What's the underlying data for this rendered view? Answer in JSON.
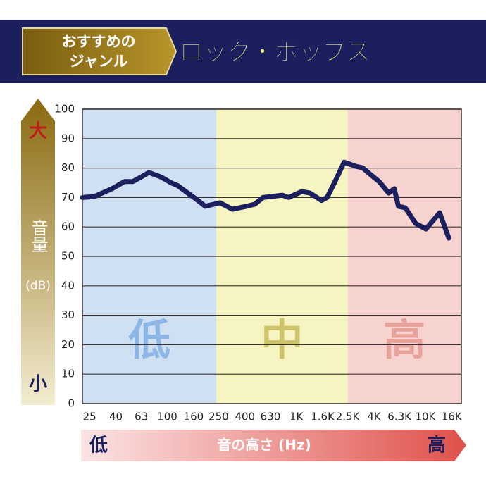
{
  "header": {
    "tag": [
      "おすすめの",
      "ジャンル"
    ],
    "genre": "ロック・ポップス"
  },
  "chart_data": {
    "type": "line",
    "y_label": "音量",
    "y_unit": "(dB)",
    "y_high": "大",
    "y_low": "小",
    "x_label": "音の高さ (Hz)",
    "x_low": "低",
    "x_high": "高",
    "x": [
      22,
      27.2,
      37.3,
      46.6,
      54,
      63,
      72,
      89,
      107,
      121,
      134,
      166,
      197,
      256,
      320,
      410,
      476,
      552,
      780,
      871,
      1100,
      1274,
      1567,
      1730,
      2052,
      2348,
      2887,
      3267,
      3830,
      4385,
      5200,
      5740,
      6180,
      6990,
      8400,
      10100,
      12900,
      15200
    ],
    "values": [
      70,
      70.3,
      73,
      75.4,
      75.4,
      77,
      78.5,
      77,
      75,
      74,
      72.5,
      69.6,
      67,
      68.2,
      66,
      67,
      67.7,
      70,
      70.8,
      70,
      72,
      71.5,
      69,
      70,
      76.5,
      82,
      80.6,
      80.1,
      77.5,
      75.4,
      71.5,
      73,
      67,
      66.5,
      61.2,
      59.3,
      64.8,
      56.2
    ],
    "color": "#1c1f5e",
    "log_x": true,
    "xlim": [
      22,
      19000
    ],
    "ylim": [
      0,
      100
    ],
    "xticks": [
      25,
      40,
      63,
      100,
      160,
      250,
      400,
      630,
      {
        "value": 1000,
        "label": "1K"
      },
      {
        "value": 1600,
        "label": "1.6K"
      },
      {
        "value": 2500,
        "label": "2.5K"
      },
      {
        "value": 4000,
        "label": "4K"
      },
      {
        "value": 6300,
        "label": "6.3K"
      },
      {
        "value": 10000,
        "label": "10K"
      },
      {
        "value": 16000,
        "label": "16K"
      }
    ],
    "yticks": [
      0,
      10,
      20,
      30,
      40,
      50,
      60,
      70,
      80,
      90,
      100
    ],
    "grid": true,
    "regions": [
      {
        "label": "低",
        "from": 22,
        "to": 240,
        "color": "#cfe0f3",
        "text_color": "#8db6e6"
      },
      {
        "label": "中",
        "from": 240,
        "to": 2500,
        "color": "#f6f4c0",
        "text_color": "#cfc36c"
      },
      {
        "label": "高",
        "from": 2500,
        "to": 19000,
        "color": "#f7d3d0",
        "text_color": "#e8a29c"
      }
    ]
  }
}
